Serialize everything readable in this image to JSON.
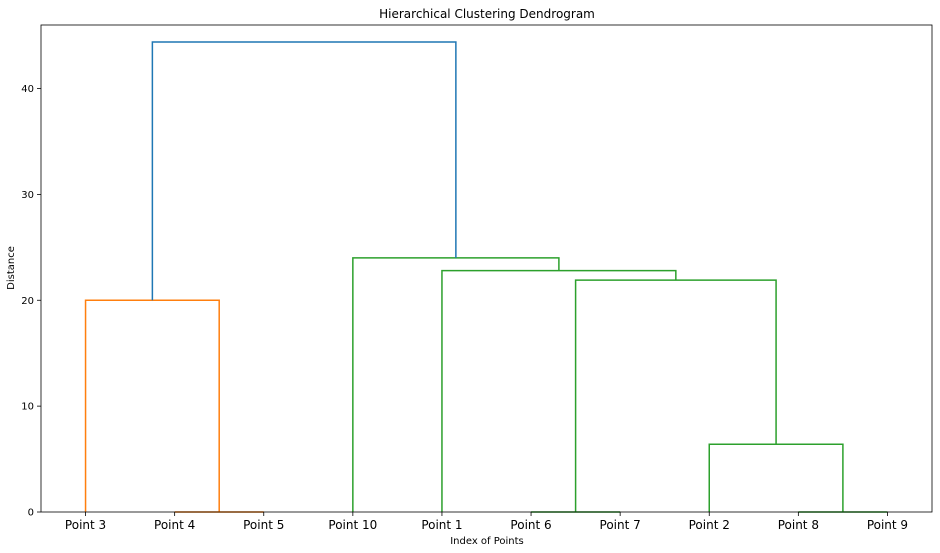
{
  "chart_data": {
    "type": "dendrogram",
    "title": "Hierarchical Clustering Dendrogram",
    "xlabel": "Index of Points",
    "ylabel": "Distance",
    "ylim": [
      0,
      46
    ],
    "yticks": [
      0,
      10,
      20,
      30,
      40
    ],
    "leaves": [
      "Point 3",
      "Point 4",
      "Point 5",
      "Point 10",
      "Point 1",
      "Point 6",
      "Point 7",
      "Point 2",
      "Point 8",
      "Point 9"
    ],
    "colors": {
      "orange": "#ff7f0e",
      "green": "#2ca02c",
      "blue": "#1f77b4"
    },
    "merges": [
      {
        "left_leaf": 1,
        "right_leaf": 2,
        "height": 0.0,
        "color": "orange"
      },
      {
        "left_leaf": 5,
        "right_leaf": 6,
        "height": 0.0,
        "color": "green"
      },
      {
        "left_leaf": 8,
        "right_leaf": 9,
        "height": 0.0,
        "color": "green"
      },
      {
        "left_leaf": 0,
        "right_cluster": 0,
        "height": 20.0,
        "color": "orange"
      },
      {
        "left_leaf": 7,
        "right_cluster": 2,
        "height": 6.4,
        "color": "green"
      },
      {
        "left_cluster": 1,
        "right_cluster": 4,
        "height": 21.9,
        "color": "green"
      },
      {
        "left_leaf": 4,
        "right_cluster": 5,
        "height": 22.8,
        "color": "green"
      },
      {
        "left_leaf": 3,
        "right_cluster": 6,
        "height": 24.0,
        "color": "green"
      },
      {
        "left_cluster": 3,
        "right_cluster": 7,
        "height": 44.4,
        "color": "blue"
      }
    ]
  }
}
